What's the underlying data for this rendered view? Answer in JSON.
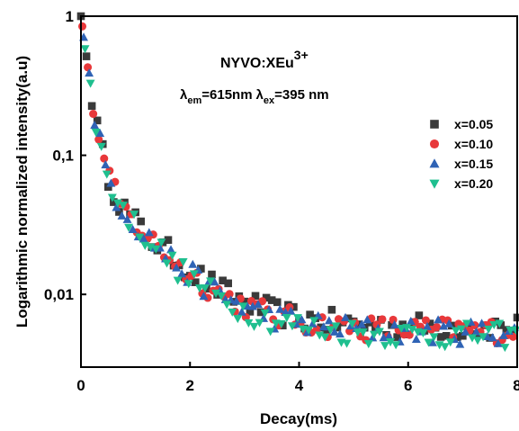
{
  "chart_data": {
    "type": "scatter",
    "xlabel": "Decay(ms)",
    "ylabel": "Logarithmic normalized intensity(a.u)",
    "xlim": [
      0,
      8
    ],
    "ylim": [
      0.003,
      1
    ],
    "yscale": "log",
    "x_ticks": [
      {
        "value": 0,
        "label": "0"
      },
      {
        "value": 2,
        "label": "2"
      },
      {
        "value": 4,
        "label": "4"
      },
      {
        "value": 6,
        "label": "6"
      },
      {
        "value": 8,
        "label": "8"
      }
    ],
    "y_ticks": [
      {
        "value": 1,
        "label": "1"
      },
      {
        "value": 0.1,
        "label": "0,1"
      },
      {
        "value": 0.01,
        "label": "0,01"
      }
    ],
    "annotations": {
      "compound": {
        "main": "NYVO:XEu",
        "sup": "3+"
      },
      "wavelengths": {
        "lambda": "λ",
        "em_sub": "em",
        "em_value": "=615nm",
        "ex_sub": "ex",
        "ex_value": "=395 nm"
      }
    },
    "legend_position": "right",
    "series": [
      {
        "name": "x=0.05",
        "marker": "square",
        "color": "#3a3a3a"
      },
      {
        "name": "x=0.10",
        "marker": "circle",
        "color": "#e8383a"
      },
      {
        "name": "x=0.15",
        "marker": "triangle-up",
        "color": "#2f63b5"
      },
      {
        "name": "x=0.20",
        "marker": "triangle-down",
        "color": "#1fbf8f"
      }
    ],
    "decay_model": {
      "amplitudes": [
        0.9,
        0.08,
        0.0055
      ],
      "lifetimes_ms": [
        0.13,
        0.9,
        1000
      ],
      "x_step_ms": 0.1,
      "scatter_range_decades": [
        -0.09,
        0.09
      ],
      "series_offsets": [
        0.025,
        0.0,
        -0.01,
        -0.035
      ]
    }
  }
}
